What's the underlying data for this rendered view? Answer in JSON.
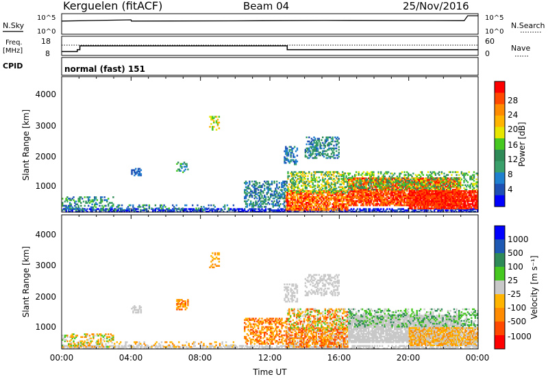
{
  "header": {
    "station": "Kerguelen (fitACF)",
    "beam": "Beam 04",
    "date": "25/Nov/2016"
  },
  "labels": {
    "nsky": "N.Sky",
    "nsearch": "N.Search",
    "freq": "Freq.",
    "freq_unit": "[MHz]",
    "nave": "Nave",
    "cpid": "CPID",
    "mode": "normal (fast) 151",
    "x_axis": "Time UT"
  },
  "chart_data": [
    {
      "type": "line",
      "name": "noise",
      "y_left_ticks": [
        "10^5",
        "10^0"
      ],
      "y_right_ticks": [
        "10^5",
        "10^0"
      ],
      "series": [
        {
          "name": "N.Sky",
          "style": "solid",
          "x": [
            0.0,
            0.02,
            4.0,
            4.02,
            10,
            15.2,
            23.2,
            23.4,
            24.0
          ],
          "y_frac": [
            0.35,
            0.36,
            0.3,
            0.36,
            0.35,
            0.33,
            0.34,
            0.1,
            0.1
          ]
        }
      ]
    },
    {
      "type": "line",
      "name": "frequency-nave",
      "y_left_ticks": [
        "18",
        "8"
      ],
      "y_right_ticks": [
        "60",
        "0"
      ],
      "series": [
        {
          "name": "Freq.",
          "style": "solid",
          "x": [
            0.0,
            0.9,
            0.9,
            1.05,
            1.05,
            13.0,
            13.0,
            24.0
          ],
          "y": [
            10,
            10,
            11,
            11,
            13,
            13,
            11,
            11
          ]
        },
        {
          "name": "Nave",
          "style": "dotted",
          "x": [
            0.0,
            24.0
          ],
          "y_frac": [
            0.28,
            0.28
          ]
        }
      ]
    },
    {
      "type": "heatmap",
      "name": "power",
      "ylabel": "Slant Range [km]",
      "yticks": [
        1000,
        2000,
        3000,
        4000
      ],
      "ylim": [
        200,
        4500
      ],
      "xlim": [
        0,
        24
      ],
      "colorbar": {
        "label": "Power [dB]",
        "ticks": [
          "28",
          "24",
          "20",
          "16",
          "12",
          "8",
          "4"
        ],
        "colors": [
          "#ff0000",
          "#ff4800",
          "#ff8c00",
          "#ffb400",
          "#e6e600",
          "#46c820",
          "#2e8b57",
          "#3aa06b",
          "#2080d0",
          "#1e50b4",
          "#0000ff"
        ]
      }
    },
    {
      "type": "heatmap",
      "name": "velocity",
      "ylabel": "Slant Range [km]",
      "yticks": [
        1000,
        2000,
        3000,
        4000
      ],
      "ylim": [
        200,
        4500
      ],
      "xlim": [
        0,
        24
      ],
      "xticks": [
        "00:00",
        "04:00",
        "08:00",
        "12:00",
        "16:00",
        "20:00",
        "00:00"
      ],
      "colorbar": {
        "label": "Velocity [m s⁻¹]",
        "ticks": [
          "1000",
          "500",
          "100",
          "25",
          "-25",
          "-100",
          "-500",
          "-1000"
        ],
        "colors": [
          "#0000ff",
          "#1e5ab4",
          "#2e8b57",
          "#46c820",
          "#c8c8c8",
          "#ffb400",
          "#ff8c00",
          "#ff4800",
          "#ff0000"
        ]
      }
    }
  ]
}
